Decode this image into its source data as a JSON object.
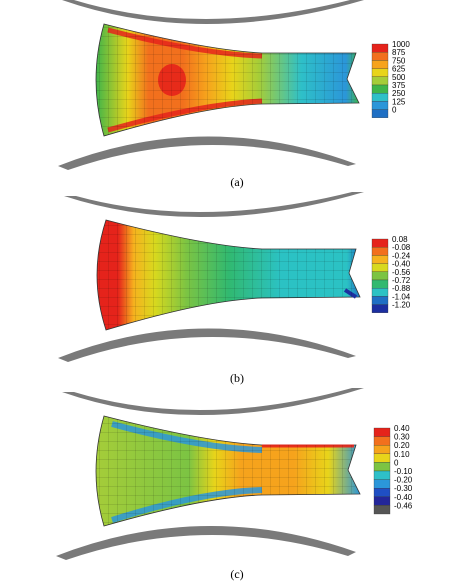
{
  "panels": [
    {
      "caption": "(a)",
      "legend": {
        "labels": [
          "1000",
          "875",
          "750",
          "625",
          "500",
          "375",
          "250",
          "125",
          "0"
        ],
        "colors": [
          "#e5231b",
          "#f2701d",
          "#f6a31c",
          "#e8d41a",
          "#a5cd39",
          "#3fb54a",
          "#2ec0c8",
          "#2b96d9",
          "#1f6fc4"
        ]
      }
    },
    {
      "caption": "(b)",
      "legend": {
        "labels": [
          "0.08",
          "-0.08",
          "-0.24",
          "-0.40",
          "-0.56",
          "-0.72",
          "-0.88",
          "-1.04",
          "-1.20"
        ],
        "colors": [
          "#e5231b",
          "#f2701d",
          "#f6b21e",
          "#d8d91e",
          "#7cc443",
          "#31b970",
          "#2bc2c4",
          "#1f6fc4",
          "#1c2fa0"
        ]
      }
    },
    {
      "caption": "(c)",
      "legend": {
        "labels": [
          "0.40",
          "0.30",
          "0.20",
          "0.10",
          "0",
          "-0.10",
          "-0.20",
          "-0.30",
          "-0.40",
          "-0.46"
        ],
        "colors": [
          "#e5231b",
          "#f2701d",
          "#f6a31c",
          "#e8d41a",
          "#7cc443",
          "#2ec0c8",
          "#2b96d9",
          "#1f4fc4",
          "#23269a",
          "#555555"
        ]
      }
    }
  ]
}
